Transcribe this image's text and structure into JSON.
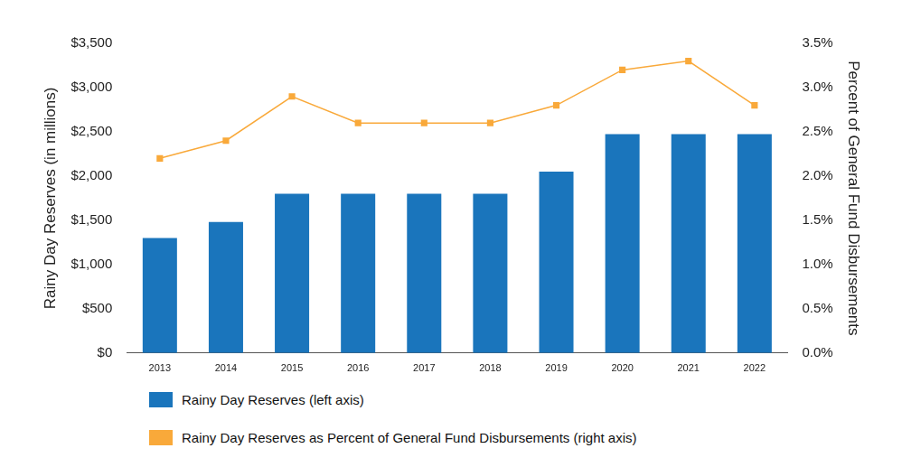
{
  "chart_data": {
    "type": "bar",
    "categories": [
      "2013",
      "2014",
      "2015",
      "2016",
      "2017",
      "2018",
      "2019",
      "2020",
      "2021",
      "2022"
    ],
    "series": [
      {
        "name": "Rainy Day Reserves (left axis)",
        "type": "bar",
        "color": "#1a75bc",
        "values": [
          1300,
          1480,
          1800,
          1800,
          1800,
          1800,
          2050,
          2475,
          2475,
          2475
        ]
      },
      {
        "name": "Rainy Day Reserves as Percent of General Fund Disbursements (right axis)",
        "type": "line",
        "color": "#f9a93a",
        "marker": "square",
        "axis": "y2",
        "values": [
          2.2,
          2.4,
          2.9,
          2.6,
          2.6,
          2.6,
          2.8,
          3.2,
          3.3,
          2.8
        ]
      }
    ],
    "y_label": "Rainy Day Reserves (in millions)",
    "y2_label": "Percent of General Fund Disbursements",
    "ylim": [
      0,
      3500
    ],
    "yticks": [
      {
        "value": 0,
        "label": "$0"
      },
      {
        "value": 500,
        "label": "$500"
      },
      {
        "value": 1000,
        "label": "$1,000"
      },
      {
        "value": 1500,
        "label": "$1,500"
      },
      {
        "value": 2000,
        "label": "$2,000"
      },
      {
        "value": 2500,
        "label": "$2,500"
      },
      {
        "value": 3000,
        "label": "$3,000"
      },
      {
        "value": 3500,
        "label": "$3,500"
      }
    ],
    "y2lim": [
      0,
      3.5
    ],
    "y2ticks": [
      {
        "value": 0,
        "label": "0.0%"
      },
      {
        "value": 0.5,
        "label": "0.5%"
      },
      {
        "value": 1,
        "label": "1.0%"
      },
      {
        "value": 1.5,
        "label": "1.5%"
      },
      {
        "value": 2,
        "label": "2.0%"
      },
      {
        "value": 2.5,
        "label": "2.5%"
      },
      {
        "value": 3,
        "label": "3.0%"
      },
      {
        "value": 3.5,
        "label": "3.5%"
      }
    ],
    "grid": false,
    "legend": "bottom"
  }
}
